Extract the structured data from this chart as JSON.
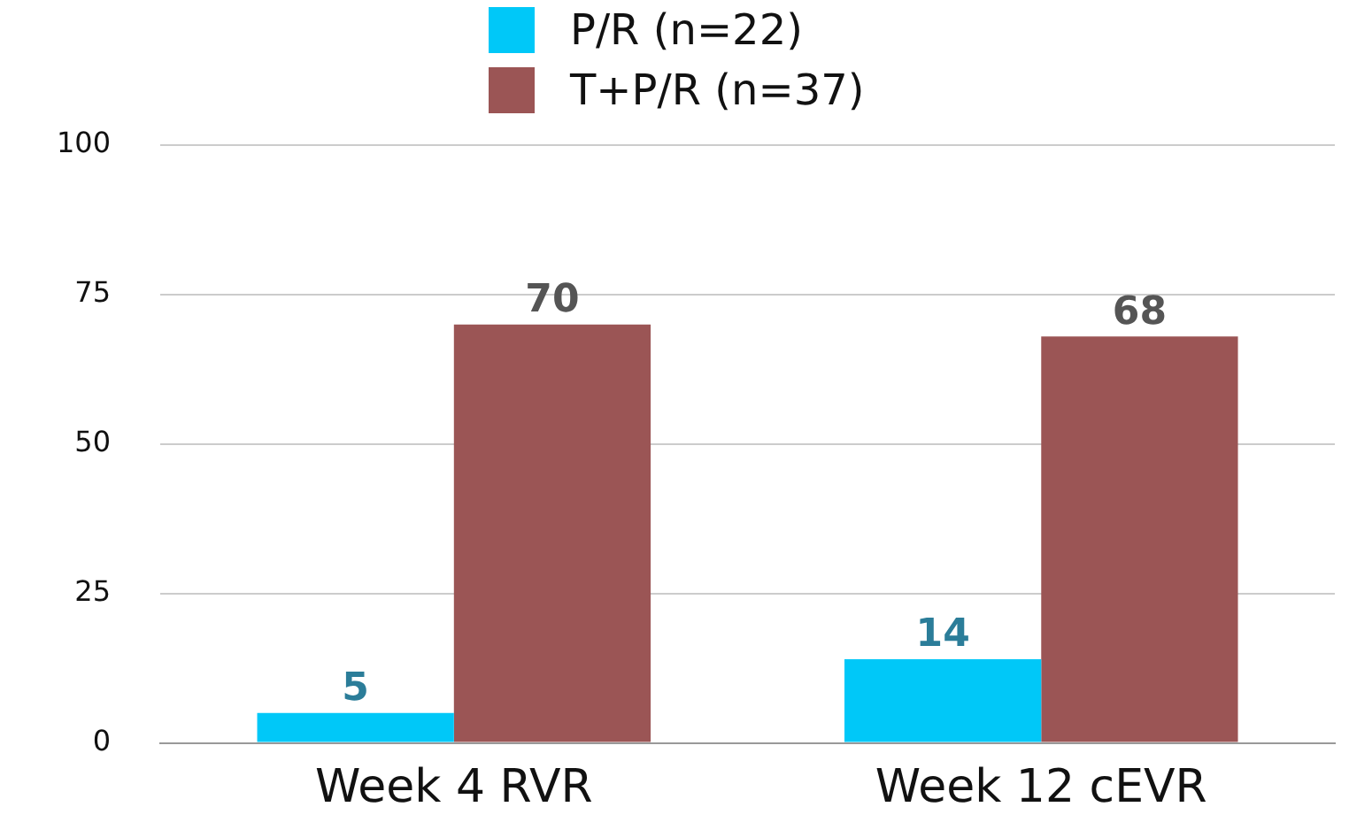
{
  "chart_data": {
    "type": "bar",
    "categories": [
      "Week 4 RVR",
      "Week 12 cEVR"
    ],
    "series": [
      {
        "name": "P/R (n=22)",
        "color": "#00c8f8",
        "values": [
          5,
          14
        ]
      },
      {
        "name": "T+P/R (n=37)",
        "color": "#9b5555",
        "values": [
          70,
          68
        ]
      }
    ],
    "ylim": [
      0,
      100
    ],
    "yticks": [
      0,
      25,
      50,
      75,
      100
    ],
    "grid": "y",
    "legend": "top",
    "data_labels": true
  }
}
